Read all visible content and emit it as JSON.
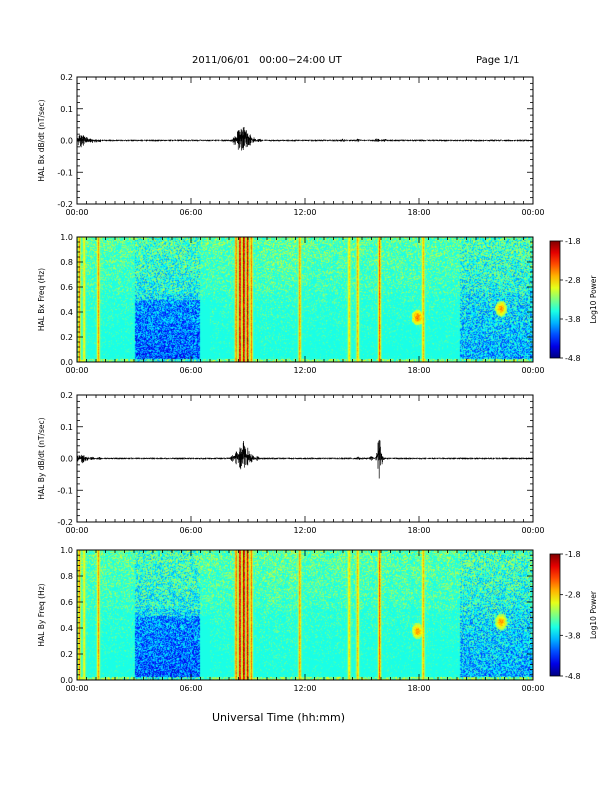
{
  "header": {
    "title": "2011/06/01   00:00−24:00 UT",
    "page": "Page 1/1"
  },
  "footer": {
    "xlabel": "Universal Time (hh:mm)"
  },
  "chart_data": [
    {
      "type": "line",
      "ylabel": "HAL Bx dB/dt (nT/sec)",
      "xlim": [
        0,
        24
      ],
      "ylim": [
        -0.2,
        0.2
      ],
      "xticks": [
        "00:00",
        "06:00",
        "12:00",
        "18:00",
        "00:00"
      ],
      "yticks": [
        "0.2",
        "0.1",
        "0.0",
        "-0.1",
        "-0.2"
      ],
      "series": [
        {
          "x": [
            0.1,
            0.2,
            0.35,
            0.5,
            0.75,
            1.0,
            1.2,
            8.3,
            8.5,
            8.65,
            8.8,
            8.95,
            9.1,
            9.3,
            9.6,
            14.0,
            14.8,
            15.8,
            16.2
          ],
          "ymin": [
            -0.02,
            -0.025,
            -0.02,
            -0.015,
            -0.01,
            -0.008,
            -0.006,
            -0.015,
            -0.03,
            -0.035,
            -0.04,
            -0.03,
            -0.02,
            -0.01,
            -0.006,
            -0.006,
            -0.006,
            -0.012,
            -0.006
          ],
          "ymax": [
            0.02,
            0.025,
            0.02,
            0.012,
            0.008,
            0.006,
            0.005,
            0.015,
            0.035,
            0.045,
            0.05,
            0.035,
            0.02,
            0.01,
            0.006,
            0.006,
            0.006,
            0.01,
            0.006
          ]
        }
      ],
      "baseline_amplitude": 0.003
    },
    {
      "type": "heatmap",
      "ylabel": "HAL Bx Freq (Hz)",
      "xlim": [
        0,
        24
      ],
      "ylim": [
        0,
        1.0
      ],
      "xticks": [
        "00:00",
        "06:00",
        "12:00",
        "18:00",
        "00:00"
      ],
      "yticks": [
        "1.0",
        "0.8",
        "0.6",
        "0.4",
        "0.2",
        "0.0"
      ],
      "colorbar": {
        "label": "Log10 Power",
        "ticks": [
          "-1.8",
          "-2.8",
          "-3.8",
          "-4.8"
        ],
        "range": [
          -4.8,
          -1.8
        ]
      },
      "features": {
        "broadband_events": [
          {
            "t": 0.1,
            "power": -2.6
          },
          {
            "t": 0.35,
            "power": -2.9
          },
          {
            "t": 1.1,
            "power": -2.6
          },
          {
            "t": 8.35,
            "power": -2.5
          },
          {
            "t": 8.55,
            "power": -2.0
          },
          {
            "t": 8.75,
            "power": -1.8
          },
          {
            "t": 8.95,
            "power": -2.0
          },
          {
            "t": 9.15,
            "power": -2.5
          },
          {
            "t": 11.7,
            "power": -2.6
          },
          {
            "t": 14.3,
            "power": -2.8
          },
          {
            "t": 14.75,
            "power": -2.7
          },
          {
            "t": 15.9,
            "power": -2.4
          },
          {
            "t": 18.2,
            "power": -2.7
          }
        ],
        "narrowband_patches": [
          {
            "t": 17.9,
            "f": 0.36,
            "power": -2.5
          },
          {
            "t": 22.3,
            "f": 0.43,
            "power": -2.6
          }
        ]
      }
    },
    {
      "type": "line",
      "ylabel": "HAL By dB/dt (nT/sec)",
      "xlim": [
        0,
        24
      ],
      "ylim": [
        -0.2,
        0.2
      ],
      "xticks": [
        "00:00",
        "06:00",
        "12:00",
        "18:00",
        "00:00"
      ],
      "yticks": [
        "0.2",
        "0.1",
        "0.0",
        "-0.1",
        "-0.2"
      ],
      "series": [
        {
          "x": [
            0.1,
            0.3,
            0.5,
            0.8,
            1.2,
            8.2,
            8.4,
            8.6,
            8.8,
            9.0,
            9.2,
            9.5,
            14.8,
            15.5,
            15.85,
            15.92,
            16.1
          ],
          "ymin": [
            -0.012,
            -0.018,
            -0.012,
            -0.008,
            -0.005,
            -0.012,
            -0.02,
            -0.035,
            -0.035,
            -0.025,
            -0.015,
            -0.008,
            -0.006,
            -0.008,
            -0.012,
            -0.07,
            -0.006
          ],
          "ymax": [
            0.012,
            0.015,
            0.01,
            0.006,
            0.005,
            0.012,
            0.025,
            0.045,
            0.06,
            0.035,
            0.015,
            0.008,
            0.006,
            0.008,
            0.01,
            0.085,
            0.006
          ]
        }
      ],
      "baseline_amplitude": 0.003
    },
    {
      "type": "heatmap",
      "ylabel": "HAL By Freq (Hz)",
      "xlim": [
        0,
        24
      ],
      "ylim": [
        0,
        1.0
      ],
      "xticks": [
        "00:00",
        "06:00",
        "12:00",
        "18:00",
        "00:00"
      ],
      "yticks": [
        "1.0",
        "0.8",
        "0.6",
        "0.4",
        "0.2",
        "0.0"
      ],
      "colorbar": {
        "label": "Log10 Power",
        "ticks": [
          "-1.8",
          "-2.8",
          "-3.8",
          "-4.8"
        ],
        "range": [
          -4.8,
          -1.8
        ]
      },
      "features": {
        "broadband_events": [
          {
            "t": 0.1,
            "power": -2.6
          },
          {
            "t": 0.35,
            "power": -2.9
          },
          {
            "t": 1.1,
            "power": -2.6
          },
          {
            "t": 8.35,
            "power": -2.5
          },
          {
            "t": 8.55,
            "power": -2.0
          },
          {
            "t": 8.75,
            "power": -1.8
          },
          {
            "t": 8.95,
            "power": -2.0
          },
          {
            "t": 9.15,
            "power": -2.5
          },
          {
            "t": 11.7,
            "power": -2.6
          },
          {
            "t": 14.3,
            "power": -2.8
          },
          {
            "t": 14.75,
            "power": -2.7
          },
          {
            "t": 15.9,
            "power": -2.4
          },
          {
            "t": 18.2,
            "power": -2.7
          }
        ],
        "narrowband_patches": [
          {
            "t": 17.9,
            "f": 0.38,
            "power": -2.6
          },
          {
            "t": 22.3,
            "f": 0.45,
            "power": -2.6
          }
        ]
      }
    }
  ]
}
